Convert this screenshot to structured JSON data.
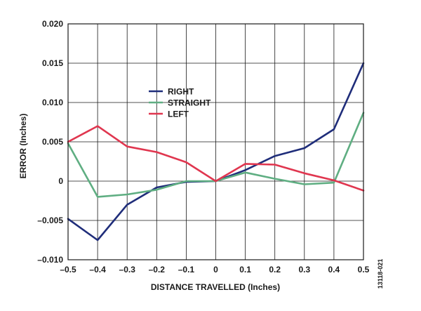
{
  "chart_data": {
    "type": "line",
    "title": "",
    "xlabel": "DISTANCE TRAVELLED (Inches)",
    "ylabel": "ERROR (Inches)",
    "xlim": [
      -0.5,
      0.5
    ],
    "ylim": [
      -0.01,
      0.02
    ],
    "x_ticks": [
      "–0.5",
      "–0.4",
      "–0.3",
      "–0.2",
      "–0.1",
      "0",
      "0.1",
      "0.2",
      "0.3",
      "0.4",
      "0.5"
    ],
    "y_ticks": [
      "0.020",
      "0.015",
      "0.010",
      "0.005",
      "0",
      "–0.005",
      "–0.010"
    ],
    "x": [
      -0.5,
      -0.4,
      -0.3,
      -0.2,
      -0.1,
      0,
      0.1,
      0.2,
      0.3,
      0.4,
      0.5
    ],
    "grid": true,
    "legend_position": "upper-center",
    "figure_code": "13118-021",
    "series": [
      {
        "name": "RIGHT",
        "color": "#1f2d7a",
        "values": [
          -0.0048,
          -0.0075,
          -0.003,
          -0.0008,
          -0.0001,
          0.0,
          0.0014,
          0.0032,
          0.0042,
          0.0066,
          0.015
        ]
      },
      {
        "name": "STRAIGHT",
        "color": "#5fae82",
        "values": [
          0.0048,
          -0.002,
          -0.0017,
          -0.0011,
          0.0,
          0.0,
          0.0011,
          0.0003,
          -0.0004,
          -0.0002,
          0.0087
        ]
      },
      {
        "name": "LEFT",
        "color": "#e0364f",
        "values": [
          0.005,
          0.007,
          0.0044,
          0.0037,
          0.0024,
          0.0,
          0.0022,
          0.0021,
          0.001,
          0.0001,
          -0.0012
        ]
      }
    ]
  }
}
